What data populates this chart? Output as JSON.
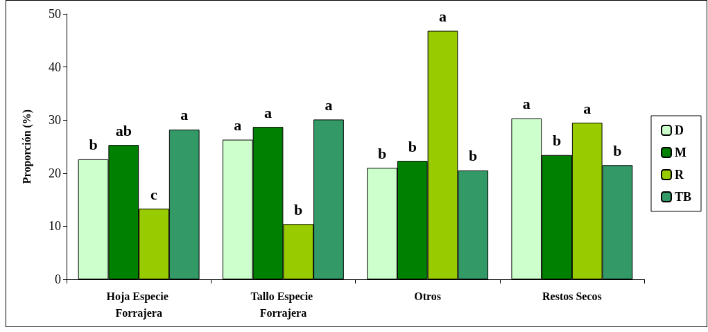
{
  "chart_data": {
    "type": "bar",
    "ylabel": "Proporción (%)",
    "categories": [
      "Hoja Especie Forrajera",
      "Tallo Especie Forrajera",
      "Otros",
      "Restos Secos"
    ],
    "series": [
      {
        "name": "D",
        "color": "#ccffcc",
        "values": [
          22.6,
          26.3,
          21.0,
          30.3
        ],
        "value_labels": [
          "b",
          "a",
          "b",
          "a"
        ]
      },
      {
        "name": "M",
        "color": "#008000",
        "values": [
          25.3,
          28.7,
          22.3,
          23.4
        ],
        "value_labels": [
          "ab",
          "a",
          "b",
          "b"
        ]
      },
      {
        "name": "R",
        "color": "#99cc00",
        "values": [
          13.3,
          10.4,
          46.8,
          29.5
        ],
        "value_labels": [
          "c",
          "b",
          "a",
          "a"
        ]
      },
      {
        "name": "TB",
        "color": "#339966",
        "values": [
          28.2,
          30.1,
          20.5,
          21.5
        ],
        "value_labels": [
          "a",
          "a",
          "b",
          "b"
        ]
      }
    ],
    "ylim": [
      0,
      50
    ],
    "yticks": [
      0,
      10,
      20,
      30,
      40,
      50
    ],
    "grid": false,
    "legend": "right"
  }
}
